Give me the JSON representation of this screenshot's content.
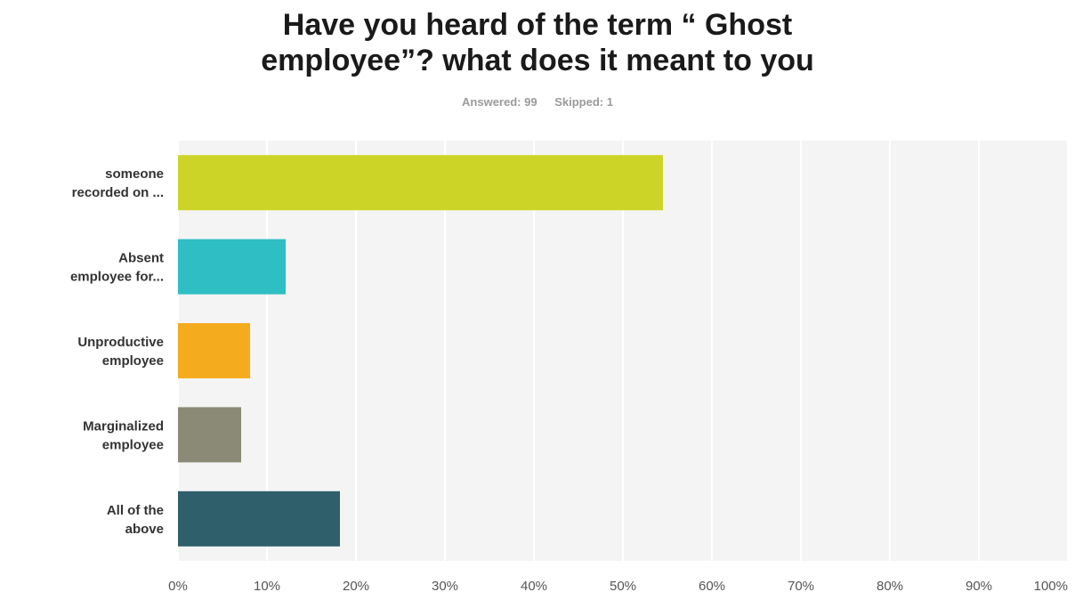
{
  "chart_data": {
    "type": "bar",
    "orientation": "horizontal",
    "title_lines": [
      "Have you heard of the term “ Ghost",
      "employee”? what does it meant to you"
    ],
    "answered_label": "Answered: 99",
    "skipped_label": "Skipped: 1",
    "categories": [
      [
        "someone",
        "recorded on ..."
      ],
      [
        "Absent",
        "employee for..."
      ],
      [
        "Unproductive",
        "employee"
      ],
      [
        "Marginalized",
        "employee"
      ],
      [
        "All of the",
        "above"
      ]
    ],
    "values": [
      54.5,
      12.1,
      8.1,
      7.1,
      18.2
    ],
    "colors": [
      "#cdd428",
      "#2fbec4",
      "#f5ab1e",
      "#8a8a76",
      "#2e5f6b"
    ],
    "x_ticks": [
      "0%",
      "10%",
      "20%",
      "30%",
      "40%",
      "50%",
      "60%",
      "70%",
      "80%",
      "90%",
      "100%"
    ],
    "xlim": [
      0,
      100
    ],
    "grid": true,
    "legend": "none",
    "background": "#f4f4f4",
    "grid_color": "#ffffff"
  }
}
